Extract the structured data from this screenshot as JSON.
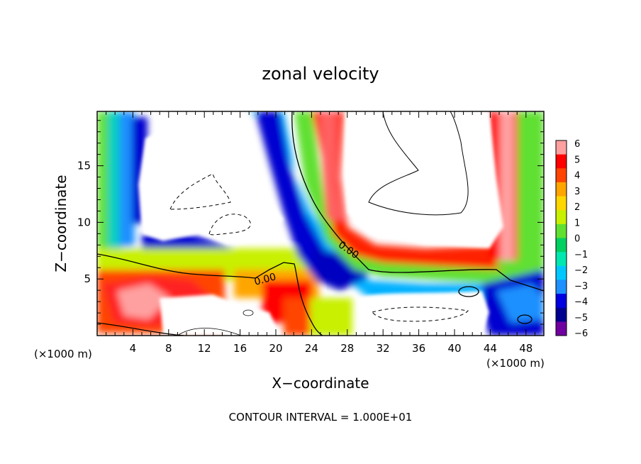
{
  "chart_data": {
    "type": "heatmap",
    "title": "zonal velocity",
    "xlabel": "X−coordinate",
    "ylabel": "Z−coordinate",
    "x_unit": "(×1000 m)",
    "y_unit": "(×1000 m)",
    "xlim": [
      0,
      50
    ],
    "ylim": [
      0,
      19.8
    ],
    "x_ticks": [
      4,
      8,
      12,
      16,
      20,
      24,
      28,
      32,
      36,
      40,
      44,
      48
    ],
    "y_ticks": [
      5,
      10,
      15
    ],
    "colorbar": {
      "ticks": [
        "6",
        "5",
        "4",
        "3",
        "2",
        "1",
        "0",
        "−1",
        "−2",
        "−3",
        "−4",
        "−5",
        "−6"
      ],
      "colors": [
        "#ffa0a0",
        "#ff0000",
        "#ff4500",
        "#ffa500",
        "#ffd700",
        "#c8f000",
        "#60e030",
        "#00d060",
        "#00e8b0",
        "#00c8ff",
        "#1e90ff",
        "#0000e0",
        "#000090",
        "#7000a0"
      ]
    },
    "contour_labels": [
      "0.00",
      "0.00"
    ],
    "footer": "CONTOUR INTERVAL = 1.000E+01"
  }
}
